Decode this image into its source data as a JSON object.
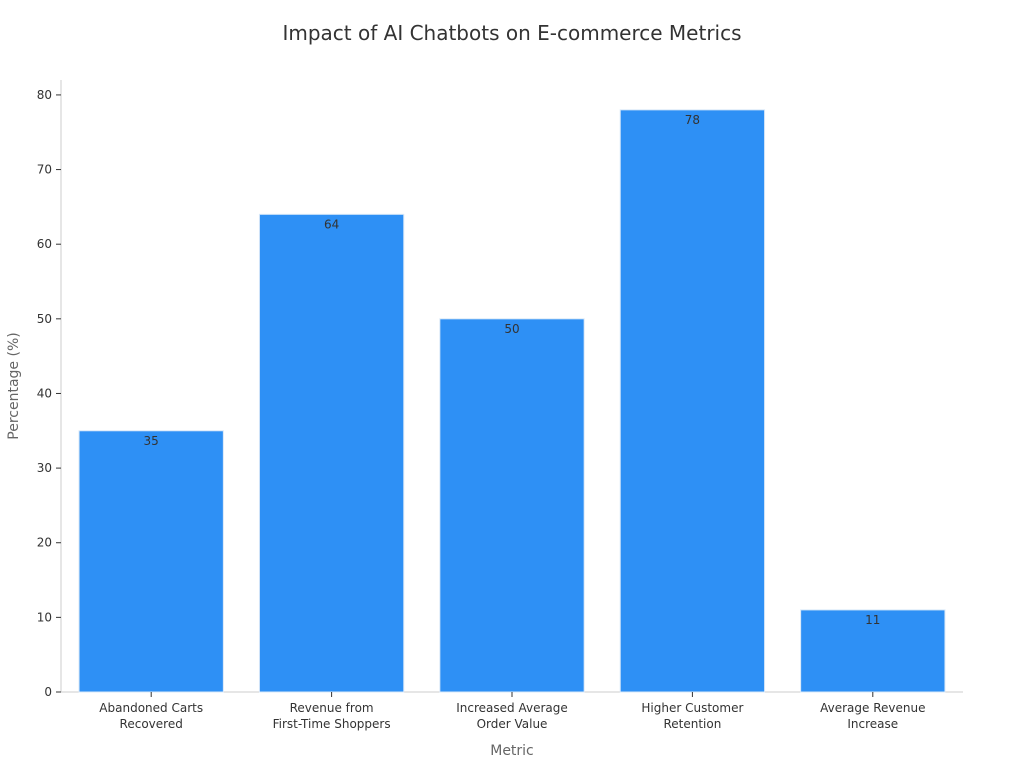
{
  "chart_data": {
    "type": "bar",
    "title": "Impact of AI Chatbots on E-commerce Metrics",
    "xlabel": "Metric",
    "ylabel": "Percentage (%)",
    "categories": [
      [
        "Abandoned Carts",
        "Recovered"
      ],
      [
        "Revenue from",
        "First-Time Shoppers"
      ],
      [
        "Increased Average",
        "Order Value"
      ],
      [
        "Higher Customer",
        "Retention"
      ],
      [
        "Average Revenue",
        "Increase"
      ]
    ],
    "values": [
      35,
      64,
      50,
      78,
      11
    ],
    "data_labels": [
      "35",
      "64",
      "50",
      "78",
      "11"
    ],
    "ylim": [
      0,
      82
    ],
    "yticks": [
      0,
      10,
      20,
      30,
      40,
      50,
      60,
      70,
      80
    ],
    "ytick_labels": [
      "0",
      "10",
      "20",
      "30",
      "40",
      "50",
      "60",
      "70",
      "80"
    ],
    "grid": false,
    "legend": "none",
    "bar_color": "#2e90f5"
  }
}
